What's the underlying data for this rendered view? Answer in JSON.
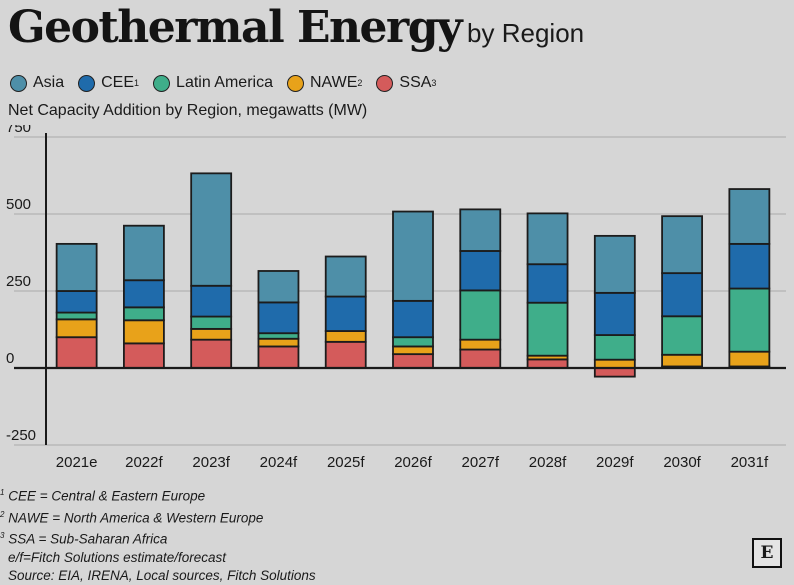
{
  "header": {
    "title": "Geothermal Energy",
    "subtitle": "by Region"
  },
  "legend": {
    "items": [
      {
        "label": "Asia",
        "sup": ""
      },
      {
        "label": "CEE",
        "sup": "1"
      },
      {
        "label": "Latin America",
        "sup": ""
      },
      {
        "label": "NAWE",
        "sup": "2"
      },
      {
        "label": "SSA",
        "sup": "3"
      }
    ]
  },
  "footnotes": {
    "n1": "CEE = Central & Eastern Europe",
    "n2": "NAWE = North America & Western Europe",
    "n3": "SSA = Sub-Saharan Africa",
    "estimate": "e/f=Fitch Solutions estimate/forecast",
    "source": "Source: EIA, IRENA, Local sources, Fitch Solutions"
  },
  "badge": "E",
  "chart_data": {
    "type": "bar",
    "stacked": true,
    "title": "Geothermal Energy by Region",
    "ylabel": "Net Capacity Addition by Region, megawatts (MW)",
    "ylim": [
      -250,
      750
    ],
    "yticks": [
      750,
      500,
      250,
      0,
      -250
    ],
    "grid": true,
    "legend_position": "top-left",
    "categories": [
      "2021e",
      "2022f",
      "2023f",
      "2024f",
      "2025f",
      "2026f",
      "2027f",
      "2028f",
      "2029f",
      "2030f",
      "2031f"
    ],
    "series": [
      {
        "name": "SSA",
        "color": "#d45b5b",
        "values": [
          100,
          80,
          92,
          70,
          85,
          45,
          60,
          28,
          -28,
          5,
          5
        ]
      },
      {
        "name": "NAWE",
        "color": "#e8a21a",
        "values": [
          58,
          75,
          35,
          25,
          35,
          25,
          32,
          12,
          27,
          38,
          48
        ]
      },
      {
        "name": "Latin America",
        "color": "#3fae8a",
        "values": [
          22,
          42,
          40,
          18,
          0,
          30,
          160,
          172,
          80,
          125,
          205
        ]
      },
      {
        "name": "CEE",
        "color": "#1f6bab",
        "values": [
          70,
          88,
          100,
          100,
          112,
          118,
          128,
          125,
          137,
          140,
          145
        ]
      },
      {
        "name": "Asia",
        "color": "#4e8fa8",
        "values": [
          153,
          177,
          365,
          102,
          130,
          290,
          135,
          165,
          185,
          185,
          178
        ]
      }
    ]
  }
}
